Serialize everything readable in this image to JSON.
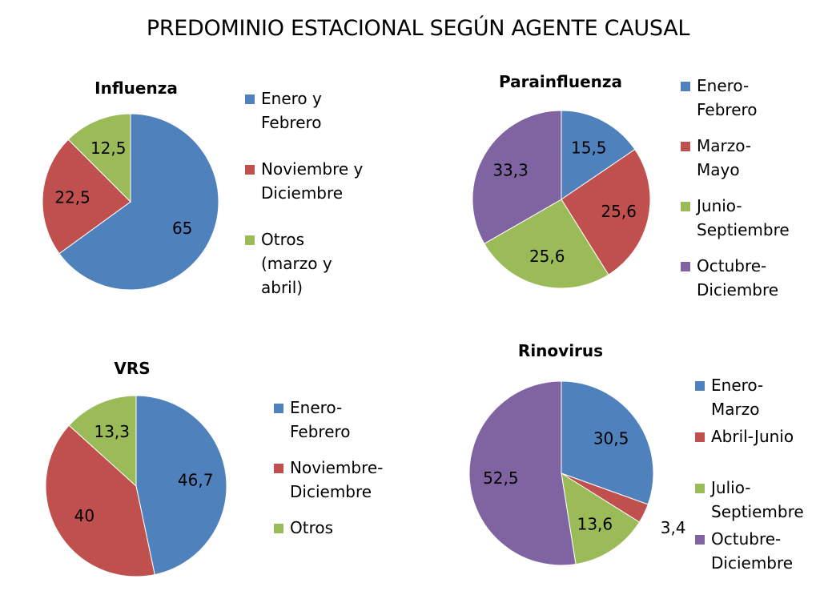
{
  "title": "PREDOMINIO ESTACIONAL SEGÚN AGENTE CAUSAL",
  "colors": {
    "blue": "#4F81BD",
    "red": "#C0504D",
    "green": "#9BBB59",
    "purple": "#8064A2"
  },
  "chart_data": [
    {
      "id": "influenza",
      "type": "pie",
      "title": "Influenza",
      "categories": [
        "Enero y Febrero",
        "Noviembre y Diciembre",
        "Otros (marzo y abril)"
      ],
      "values": [
        65,
        22.5,
        12.5
      ],
      "labels": [
        "65",
        "22,5",
        "12,5"
      ],
      "colors": [
        "#4F81BD",
        "#C0504D",
        "#9BBB59"
      ],
      "legend_position": "right"
    },
    {
      "id": "parainfluenza",
      "type": "pie",
      "title": "Parainfluenza",
      "categories": [
        "Enero-Febrero",
        "Marzo-Mayo",
        "Junio-Septiembre",
        "Octubre-Diciembre"
      ],
      "values": [
        15.5,
        25.6,
        25.6,
        33.3
      ],
      "labels": [
        "15,5",
        "25,6",
        "25,6",
        "33,3"
      ],
      "colors": [
        "#4F81BD",
        "#C0504D",
        "#9BBB59",
        "#8064A2"
      ],
      "legend_position": "right"
    },
    {
      "id": "vrs",
      "type": "pie",
      "title": "VRS",
      "categories": [
        "Enero-Febrero",
        "Noviembre-Diciembre",
        "Otros"
      ],
      "values": [
        46.7,
        40,
        13.3
      ],
      "labels": [
        "46,7",
        "40",
        "13,3"
      ],
      "colors": [
        "#4F81BD",
        "#C0504D",
        "#9BBB59"
      ],
      "legend_position": "right"
    },
    {
      "id": "rinovirus",
      "type": "pie",
      "title": "Rinovirus",
      "categories": [
        "Enero-Marzo",
        "Abril-Junio",
        "Julio-Septiembre",
        "Octubre-Diciembre"
      ],
      "values": [
        30.5,
        3.4,
        13.6,
        52.5
      ],
      "labels": [
        "30,5",
        "3,4",
        "13,6",
        "52,5"
      ],
      "colors": [
        "#4F81BD",
        "#C0504D",
        "#9BBB59",
        "#8064A2"
      ],
      "legend_position": "right"
    }
  ]
}
